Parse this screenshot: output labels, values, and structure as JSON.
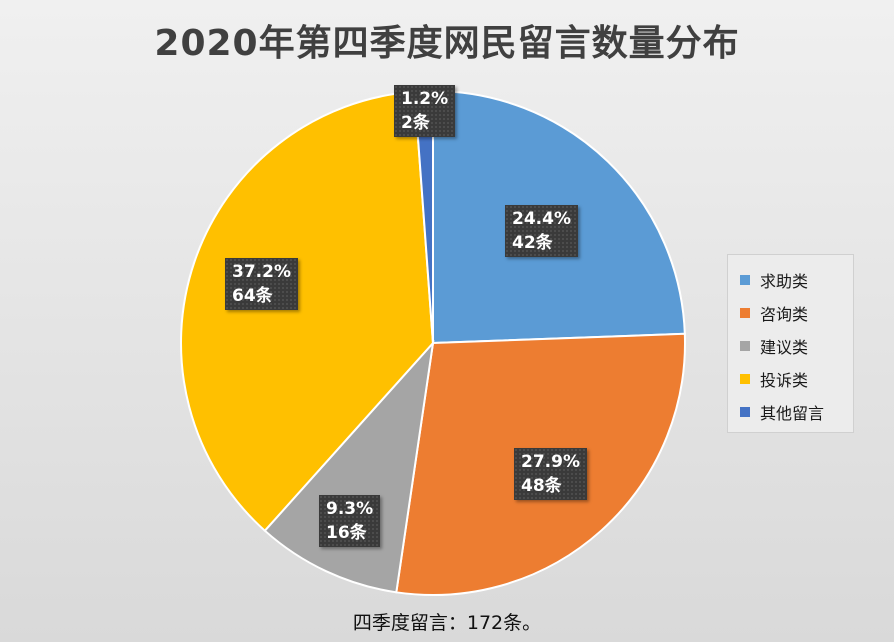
{
  "chart_data": {
    "type": "pie",
    "title": "2020年第四季度网民留言数量分布",
    "categories": [
      "求助类",
      "咨询类",
      "建议类",
      "投诉类",
      "其他留言"
    ],
    "values": [
      42,
      48,
      16,
      64,
      2
    ],
    "percent_labels": [
      "24.4%",
      "27.9%",
      "9.3%",
      "37.2%",
      "1.2%"
    ],
    "count_labels": [
      "42条",
      "48条",
      "16条",
      "64条",
      "2条"
    ],
    "colors": [
      "#5b9bd5",
      "#ed7d31",
      "#a5a5a5",
      "#ffc000",
      "#4472c4"
    ],
    "legend_position": "right",
    "footnote": "四季度留言：172条。"
  }
}
